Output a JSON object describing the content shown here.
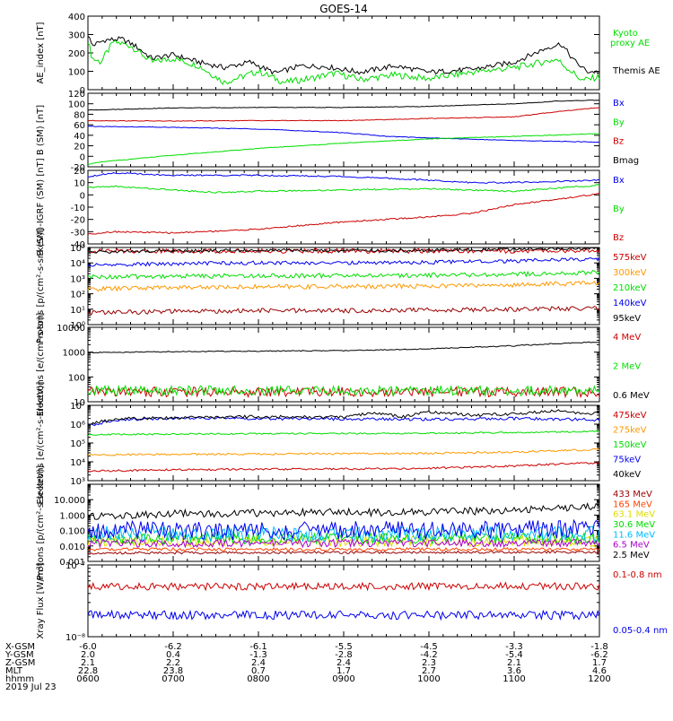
{
  "title": "GOES-14",
  "colors": {
    "black": "#000000",
    "green": "#00dd00",
    "red": "#cc0000",
    "blue": "#0000ee",
    "orange": "#ff9900",
    "cyan": "#00bbff",
    "yellow": "#dddd00",
    "purple": "#aa00cc",
    "darkred": "#990000",
    "orangered": "#ff4400"
  },
  "chart_data": [
    {
      "type": "line",
      "ylabel": "AE_index [nT]",
      "ylim": [
        0,
        400
      ],
      "yticks": [
        0,
        100,
        200,
        300,
        400
      ],
      "series": [
        {
          "name": "Kyoto proxy AE",
          "color": "green",
          "t": [
            0,
            0.05,
            0.15,
            0.3,
            0.5,
            0.75,
            1,
            1.3,
            1.6,
            2,
            2.3,
            2.6,
            2.9,
            3.2,
            3.6,
            4,
            4.5,
            5,
            5.5,
            5.8,
            6
          ],
          "v": [
            270,
            170,
            150,
            260,
            240,
            150,
            170,
            130,
            40,
            100,
            40,
            60,
            90,
            55,
            80,
            60,
            95,
            120,
            165,
            50,
            70
          ]
        },
        {
          "name": "Themis AE",
          "color": "black",
          "t": [
            0,
            0.05,
            0.2,
            0.4,
            0.55,
            0.75,
            1,
            1.3,
            1.6,
            1.9,
            2.2,
            2.5,
            2.8,
            3.2,
            3.6,
            4,
            4.5,
            5,
            5.4,
            5.55,
            5.7,
            5.85,
            6
          ],
          "v": [
            300,
            240,
            270,
            275,
            240,
            170,
            190,
            150,
            120,
            150,
            90,
            130,
            125,
            95,
            130,
            95,
            110,
            150,
            230,
            250,
            160,
            100,
            95
          ]
        }
      ]
    },
    {
      "type": "line",
      "ylabel": "B (SM) [nT]",
      "ylim": [
        -20,
        120
      ],
      "yticks": [
        -20,
        0,
        20,
        40,
        60,
        80,
        100,
        120
      ],
      "series": [
        {
          "name": "Bx",
          "color": "blue",
          "t": [
            0,
            1,
            2,
            3,
            3.5,
            4,
            5,
            6
          ],
          "v": [
            57,
            55,
            52,
            45,
            38,
            35,
            30,
            27
          ]
        },
        {
          "name": "By",
          "color": "green",
          "t": [
            0,
            0.2,
            1,
            2,
            3,
            4,
            5,
            6
          ],
          "v": [
            -15,
            -10,
            2,
            15,
            25,
            33,
            38,
            43
          ]
        },
        {
          "name": "Bz",
          "color": "red",
          "t": [
            0,
            1,
            2,
            3,
            4,
            5,
            5.5,
            6
          ],
          "v": [
            68,
            67,
            68,
            68,
            72,
            75,
            85,
            93
          ]
        },
        {
          "name": "Bmag",
          "color": "black",
          "t": [
            0,
            0.5,
            1,
            2,
            3,
            4,
            5,
            5.5,
            6
          ],
          "v": [
            88,
            90,
            92,
            93,
            93,
            95,
            100,
            105,
            107
          ]
        }
      ]
    },
    {
      "type": "line",
      "ylabel": "B (SM)-IGRF (SM) [nT]",
      "ylim": [
        -40,
        20
      ],
      "yticks": [
        -40,
        -30,
        -20,
        -10,
        0,
        10,
        20
      ],
      "series": [
        {
          "name": "Bx",
          "color": "blue",
          "t": [
            0,
            0.3,
            1,
            2,
            3,
            4,
            4.5,
            5,
            6
          ],
          "v": [
            15,
            18,
            16,
            16,
            15,
            12,
            10,
            10,
            12
          ]
        },
        {
          "name": "By",
          "color": "green",
          "t": [
            0,
            0.3,
            1,
            1.5,
            2,
            3,
            4,
            5,
            6
          ],
          "v": [
            6,
            7,
            4,
            2,
            3,
            4,
            5,
            3,
            8
          ]
        },
        {
          "name": "Bz",
          "color": "red",
          "t": [
            0,
            0.3,
            1,
            2,
            3,
            4,
            4.5,
            5,
            6
          ],
          "v": [
            -32,
            -30,
            -31,
            -28,
            -22,
            -18,
            -15,
            -8,
            1
          ]
        }
      ]
    },
    {
      "type": "line",
      "ylabel": "Protons [p/(cm²-s-sr-keV)]",
      "yscale": "log",
      "ylim": [
        1,
        100000
      ],
      "yticklabels": [
        "10⁰",
        "10¹",
        "10²",
        "10³",
        "10⁴",
        "10⁵"
      ],
      "series": [
        {
          "name": "575keV",
          "color": "red",
          "t": [
            0,
            1,
            2,
            3,
            4,
            5,
            6
          ],
          "v": [
            60000,
            60000,
            60000,
            60000,
            60000,
            60000,
            60000
          ]
        },
        {
          "name": "300keV",
          "color": "orange",
          "t": [
            0,
            1,
            2,
            3,
            4,
            5,
            6
          ],
          "v": [
            200,
            260,
            280,
            300,
            320,
            380,
            500
          ]
        },
        {
          "name": "210keV",
          "color": "green",
          "t": [
            0,
            1,
            2,
            3,
            4,
            5,
            6
          ],
          "v": [
            1200,
            1400,
            1500,
            1500,
            1600,
            1800,
            2500
          ]
        },
        {
          "name": "140keV",
          "color": "blue",
          "t": [
            0,
            1,
            2,
            3,
            4,
            5,
            6
          ],
          "v": [
            7000,
            9000,
            10000,
            10000,
            11000,
            13000,
            18000
          ]
        },
        {
          "name": "95keV",
          "color": "black",
          "t": [
            0,
            1,
            2,
            3,
            4,
            5,
            6
          ],
          "v": [
            50000,
            60000,
            65000,
            60000,
            65000,
            80000,
            90000
          ]
        },
        {
          "name": "",
          "color": "darkred",
          "t": [
            0,
            1,
            2,
            3,
            4,
            5,
            6
          ],
          "v": [
            6,
            7,
            8,
            8,
            9,
            10,
            12
          ]
        }
      ]
    },
    {
      "type": "line",
      "ylabel": "Electrons [e/(cm²-s-sr)]",
      "yscale": "log",
      "ylim": [
        10,
        10000
      ],
      "yticklabels": [
        "10",
        "100",
        "1000",
        "10000"
      ],
      "series": [
        {
          "name": "4 MeV",
          "color": "red",
          "t": [
            0,
            1,
            2,
            3,
            4,
            5,
            6
          ],
          "v": [
            25,
            25,
            25,
            25,
            25,
            25,
            25
          ]
        },
        {
          "name": "2 MeV",
          "color": "green",
          "t": [
            0,
            1,
            2,
            3,
            4,
            5,
            6
          ],
          "v": [
            28,
            28,
            28,
            28,
            28,
            28,
            28
          ]
        },
        {
          "name": "0.6 MeV",
          "color": "black",
          "t": [
            0,
            1,
            2,
            3,
            4,
            5,
            6
          ],
          "v": [
            950,
            1050,
            1100,
            1150,
            1350,
            1800,
            2600
          ]
        }
      ]
    },
    {
      "type": "line",
      "ylabel": "Electrons [e/(cm²-s-sr-keV)]",
      "yscale": "log",
      "ylim": [
        1000,
        10000000
      ],
      "yticklabels": [
        "10³",
        "10⁴",
        "10⁵",
        "10⁶",
        "10⁷"
      ],
      "series": [
        {
          "name": "475keV",
          "color": "red",
          "t": [
            0,
            1,
            2,
            3,
            4,
            5,
            6
          ],
          "v": [
            3200,
            3800,
            4000,
            4200,
            4500,
            6000,
            9000
          ]
        },
        {
          "name": "275keV",
          "color": "orange",
          "t": [
            0,
            1,
            2,
            3,
            4,
            5,
            6
          ],
          "v": [
            23000,
            25000,
            26000,
            27000,
            28000,
            33000,
            45000
          ]
        },
        {
          "name": "150keV",
          "color": "green",
          "t": [
            0,
            1,
            2,
            3,
            4,
            5,
            6
          ],
          "v": [
            280000,
            300000,
            310000,
            320000,
            330000,
            360000,
            420000
          ]
        },
        {
          "name": "75keV",
          "color": "blue",
          "t": [
            0,
            0.4,
            1,
            2,
            3,
            4,
            5,
            6
          ],
          "v": [
            800000,
            1800000,
            2000000,
            2000000,
            1900000,
            1800000,
            2000000,
            1700000
          ]
        },
        {
          "name": "40keV",
          "color": "black",
          "t": [
            0,
            0.4,
            1,
            2,
            3,
            3.3,
            3.7,
            4,
            4.5,
            5,
            5.5,
            5.8,
            6
          ],
          "v": [
            1000000,
            1900000,
            2200000,
            2500000,
            2300000,
            3800000,
            2500000,
            4500000,
            3000000,
            3500000,
            5000000,
            3500000,
            3800000
          ]
        }
      ]
    },
    {
      "type": "line",
      "ylabel": "Protons [p/(cm²-s-sr-keV)]",
      "yscale": "log",
      "ylim": [
        0.001,
        100
      ],
      "yticklabels": [
        "0.001",
        "0.010",
        "0.100",
        "1.000",
        "10.000"
      ],
      "series": [
        {
          "name": "433 MeV",
          "color": "darkred",
          "t": [
            0,
            3,
            6
          ],
          "v": [
            0.0035,
            0.0038,
            0.004
          ]
        },
        {
          "name": "165 MeV",
          "color": "orangered",
          "t": [
            0,
            3,
            6
          ],
          "v": [
            0.006,
            0.006,
            0.006
          ]
        },
        {
          "name": "63.1 MeV",
          "color": "yellow",
          "t": [
            0,
            3,
            6
          ],
          "v": [
            0.02,
            0.02,
            0.02
          ]
        },
        {
          "name": "30.6 MeV",
          "color": "green",
          "t": [
            0,
            3,
            6
          ],
          "v": [
            0.03,
            0.03,
            0.03
          ]
        },
        {
          "name": "11.6 MeV",
          "color": "cyan",
          "t": [
            0,
            3,
            6
          ],
          "v": [
            0.06,
            0.06,
            0.06
          ]
        },
        {
          "name": "6.5 MeV",
          "color": "purple",
          "t": [
            0,
            3,
            6
          ],
          "v": [
            0.015,
            0.015,
            0.015
          ]
        },
        {
          "name": "2.5 MeV",
          "color": "black",
          "t": [
            0,
            1,
            2,
            3,
            4,
            5,
            5.5,
            6
          ],
          "v": [
            0.8,
            1.2,
            1.4,
            1.5,
            1.6,
            2.0,
            3.0,
            3.5
          ]
        },
        {
          "name": "",
          "color": "blue",
          "t": [
            0,
            3,
            6
          ],
          "v": [
            0.1,
            0.1,
            0.12
          ]
        }
      ]
    },
    {
      "type": "line",
      "ylabel": "Xray Flux [W/m²]",
      "yscale": "log",
      "ylim": [
        1e-08,
        1e-07
      ],
      "yticklabels": [
        "10⁻⁸",
        "10⁻⁷"
      ],
      "series": [
        {
          "name": "0.1-0.8 nm",
          "color": "red",
          "t": [
            0,
            1,
            2,
            3,
            4,
            5,
            6
          ],
          "v": [
            5e-08,
            5e-08,
            5e-08,
            5e-08,
            5e-08,
            5.1e-08,
            5e-08
          ]
        },
        {
          "name": "0.05-0.4 nm",
          "color": "blue",
          "t": [
            0,
            1,
            2,
            3,
            4,
            5,
            6
          ],
          "v": [
            2e-08,
            2e-08,
            2e-08,
            2e-08,
            2e-08,
            2e-08,
            2e-08
          ]
        }
      ]
    }
  ],
  "xaxis": {
    "ticks": [
      "0600",
      "0700",
      "0800",
      "0900",
      "1000",
      "1100",
      "1200"
    ],
    "rows": [
      {
        "label": "X-GSM",
        "values": [
          "-6.0",
          "-6.2",
          "-6.1",
          "-5.5",
          "-4.5",
          "-3.3",
          "-1.8"
        ]
      },
      {
        "label": "Y-GSM",
        "values": [
          "2.0",
          "0.4",
          "-1.3",
          "-2.8",
          "-4.2",
          "-5.4",
          "-6.2"
        ]
      },
      {
        "label": "Z-GSM",
        "values": [
          "2.1",
          "2.2",
          "2.4",
          "2.4",
          "2.3",
          "2.1",
          "1.7"
        ]
      },
      {
        "label": "MLT",
        "values": [
          "22.8",
          "23.8",
          "0.7",
          "1.7",
          "2.7",
          "3.6",
          "4.6"
        ]
      },
      {
        "label": "hhmm",
        "values": [
          "0600",
          "0700",
          "0800",
          "0900",
          "1000",
          "1100",
          "1200"
        ]
      }
    ],
    "date": "2019 Jul 23"
  }
}
